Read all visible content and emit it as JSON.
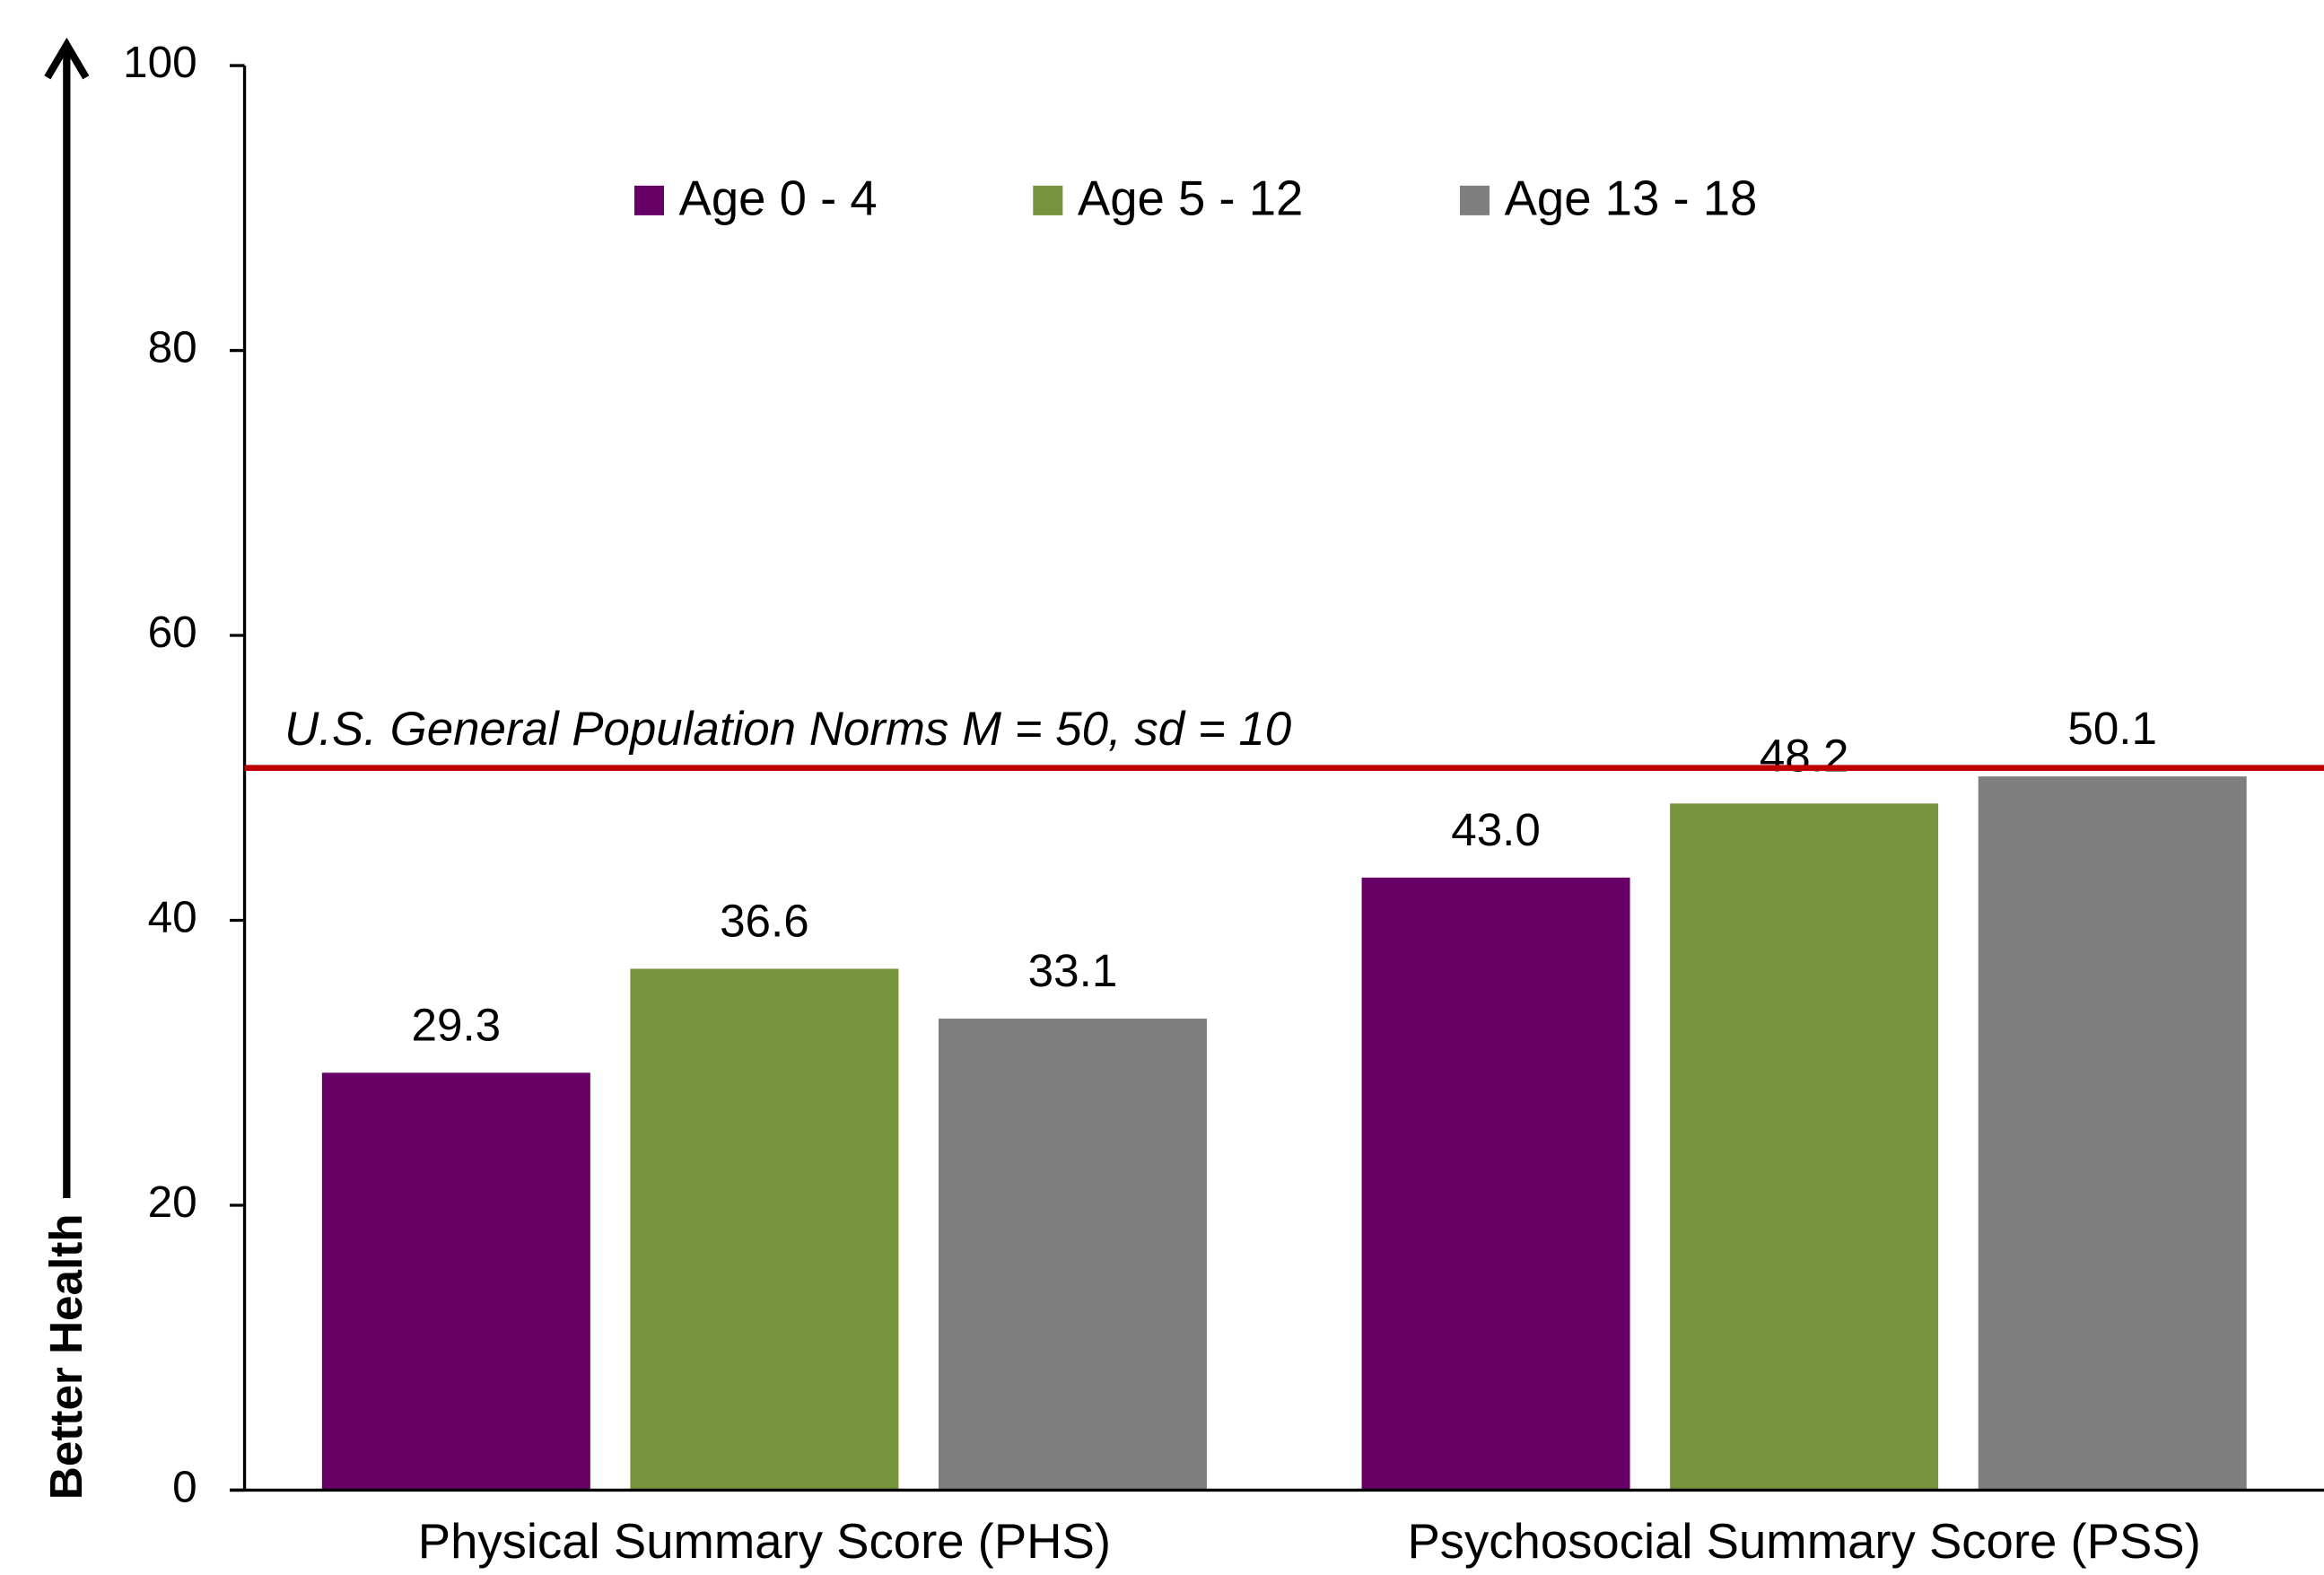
{
  "chart_data": {
    "type": "bar",
    "categories": [
      "Physical Summary Score (PHS)",
      "Psychosocial Summary Score (PSS)"
    ],
    "series": [
      {
        "name": "Age 0 - 4",
        "color": "#660066",
        "values": [
          29.3,
          43.0
        ],
        "value_labels": [
          "29.3",
          "43.0"
        ]
      },
      {
        "name": "Age 5 - 12",
        "color": "#77933c",
        "values": [
          36.6,
          48.2
        ],
        "value_labels": [
          "36.6",
          "48.2"
        ]
      },
      {
        "name": "Age 13 - 18",
        "color": "#7f7f7f",
        "values": [
          33.1,
          50.1
        ],
        "value_labels": [
          "33.1",
          "50.1"
        ]
      }
    ],
    "y_label": "Better Health",
    "ylim": [
      0,
      100
    ],
    "yticks": [
      0,
      20,
      40,
      60,
      80,
      100
    ],
    "reference_line": {
      "value": 50.7,
      "label": "U.S. General Population Norms M = 50, sd = 10",
      "color": "#c00000"
    },
    "legend": "top"
  }
}
